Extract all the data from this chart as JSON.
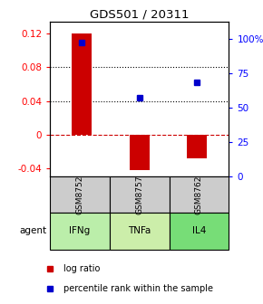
{
  "title": "GDS501 / 20311",
  "samples": [
    "GSM8752",
    "GSM8757",
    "GSM8762"
  ],
  "agents": [
    "IFNg",
    "TNFa",
    "IL4"
  ],
  "log_ratios": [
    0.12,
    -0.043,
    -0.028
  ],
  "percentile_ranks": [
    97,
    57,
    68
  ],
  "ylim_left": [
    -0.05,
    0.135
  ],
  "ylim_right": [
    0,
    112.5
  ],
  "yticks_left": [
    -0.04,
    0.0,
    0.04,
    0.08,
    0.12
  ],
  "ytick_labels_left": [
    "-0.04",
    "0",
    "0.04",
    "0.08",
    "0.12"
  ],
  "yticks_right": [
    0,
    25,
    50,
    75,
    100
  ],
  "ytick_labels_right": [
    "0",
    "25",
    "50",
    "75",
    "100%"
  ],
  "bar_color": "#cc0000",
  "dot_color": "#0000cc",
  "agent_colors": [
    "#bbeeaa",
    "#cceeaa",
    "#77dd77"
  ],
  "sample_bg": "#cccccc",
  "bar_width": 0.35
}
